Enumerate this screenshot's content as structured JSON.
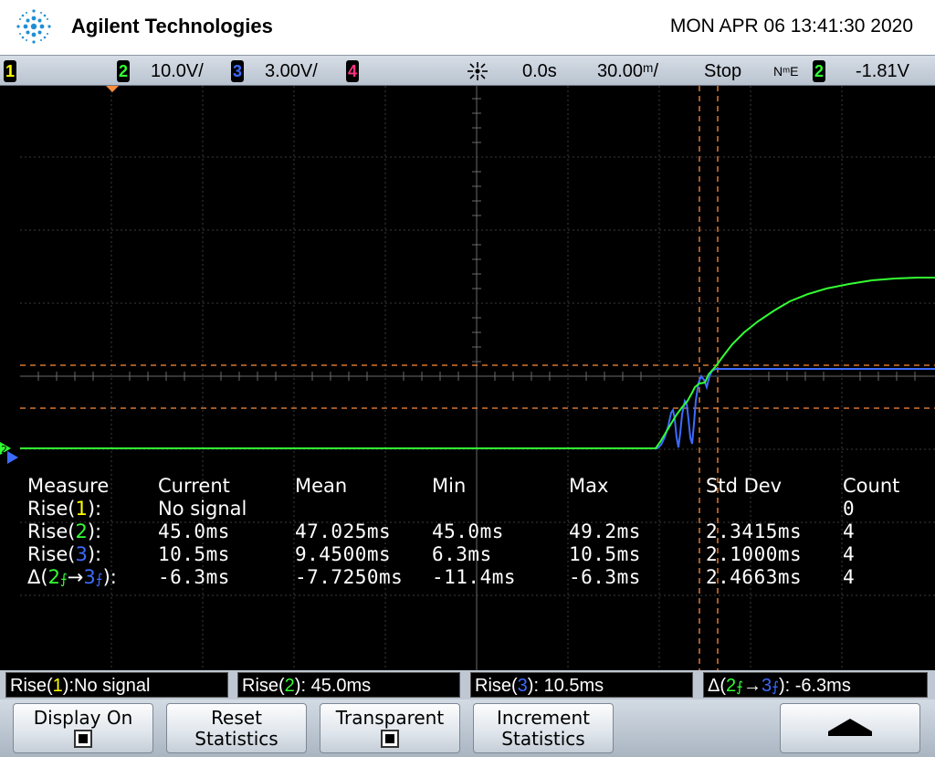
{
  "header": {
    "brand": "Agilent Technologies",
    "datetime": "MON APR 06 13:41:30 2020",
    "logo_icon": "agilent-spark-logo"
  },
  "status_bar": {
    "ch1_label": "1",
    "ch2_label": "2",
    "ch2_scale": "10.0V/",
    "ch3_label": "3",
    "ch3_scale": "3.00V/",
    "ch4_label": "4",
    "trigger_icon": "trigger-sun-icon",
    "delay": "0.0s",
    "timebase": "30.00ᵐ/",
    "run_state": "Stop",
    "trig_mode": "NᵐE",
    "trig_source": "2",
    "trig_level": "-1.81V",
    "colors": {
      "ch1": "#ffff00",
      "ch2": "#33ff33",
      "ch3": "#3d6bff",
      "ch4": "#ff3380",
      "cursor": "#ff8c3a"
    }
  },
  "measurements": {
    "headers": [
      "Measure",
      "Current",
      "Mean",
      "Min",
      "Max",
      "Std Dev",
      "Count"
    ],
    "rows": [
      {
        "label_pre": "Rise(",
        "ch": "1",
        "label_post": "):",
        "current": "No signal",
        "mean": "",
        "min": "",
        "max": "",
        "std": "",
        "count": "0"
      },
      {
        "label_pre": "Rise(",
        "ch": "2",
        "label_post": "):",
        "current": "45.0ms",
        "mean": "47.025ms",
        "min": "45.0ms",
        "max": "49.2ms",
        "std": "2.3415ms",
        "count": "4"
      },
      {
        "label_pre": "Rise(",
        "ch": "3",
        "label_post": "):",
        "current": "10.5ms",
        "mean": "9.4500ms",
        "min": "6.3ms",
        "max": "10.5ms",
        "std": "2.1000ms",
        "count": "4"
      },
      {
        "label_pre": "Δ(",
        "ch": "2",
        "label_mid": "→",
        "ch_b": "3",
        "label_post": "):",
        "current": "-6.3ms",
        "mean": "-7.7250ms",
        "min": "-11.4ms",
        "max": "-6.3ms",
        "std": "2.4663ms",
        "count": "4"
      }
    ]
  },
  "quick_bar": [
    {
      "pre": "Rise(",
      "ch": "1",
      "post": "):No signal"
    },
    {
      "pre": "Rise(",
      "ch": "2",
      "post": "): 45.0ms"
    },
    {
      "pre": "Rise(",
      "ch": "3",
      "post": "): 10.5ms"
    },
    {
      "pre": "Δ(",
      "ch": "2",
      "mid": "→",
      "ch_b": "3",
      "post": "): -6.3ms"
    }
  ],
  "softkeys": [
    {
      "line1": "Display On",
      "line2": "",
      "checkbox": true
    },
    {
      "line1": "Reset",
      "line2": "Statistics",
      "checkbox": false
    },
    {
      "line1": "Transparent",
      "line2": "",
      "checkbox": true
    },
    {
      "line1": "Increment",
      "line2": "Statistics",
      "checkbox": false
    },
    {
      "line1": "",
      "line2": "",
      "icon": "up-arrow-icon"
    }
  ]
}
